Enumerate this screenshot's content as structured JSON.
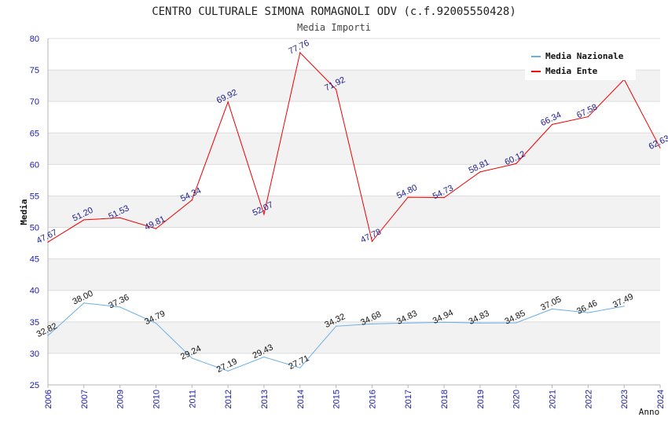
{
  "chart_data": {
    "type": "line",
    "title": "CENTRO CULTURALE SIMONA ROMAGNOLI ODV (c.f.92005550428)",
    "subtitle": "Media Importi",
    "xlabel": "Anno",
    "ylabel": "Media",
    "ylim": [
      25,
      80
    ],
    "yticks": [
      25,
      30,
      35,
      40,
      45,
      50,
      55,
      60,
      65,
      70,
      75,
      80
    ],
    "categories": [
      "2006",
      "2007",
      "2009",
      "2010",
      "2011",
      "2012",
      "2013",
      "2014",
      "2015",
      "2016",
      "2017",
      "2018",
      "2019",
      "2020",
      "2021",
      "2022",
      "2023",
      "2024"
    ],
    "grid": "horizontal bands",
    "legend_position": "top-right",
    "series": [
      {
        "name": "Media Nazionale",
        "color": "#6aaee6",
        "label_color": "#111111",
        "values": [
          32.82,
          38.0,
          37.36,
          34.79,
          29.24,
          27.19,
          29.43,
          27.71,
          34.32,
          34.68,
          34.83,
          34.94,
          34.83,
          34.85,
          37.05,
          36.46,
          37.49,
          null
        ],
        "labels": [
          "32.82",
          "38.00",
          "37.36",
          "34.79",
          "29.24",
          "27.19",
          "29.43",
          "27.71",
          "34.32",
          "34.68",
          "34.83",
          "34.94",
          "34.83",
          "34.85",
          "37.05",
          "36.46",
          "37.49",
          null
        ]
      },
      {
        "name": "Media Ente",
        "color": "#ee0000",
        "label_color": "#1a1a8c",
        "values": [
          47.67,
          51.2,
          51.53,
          49.81,
          54.34,
          69.92,
          52.07,
          77.76,
          71.92,
          47.78,
          54.8,
          54.73,
          58.81,
          60.12,
          66.34,
          67.58,
          73.5,
          62.63
        ],
        "labels": [
          "47.67",
          "51.20",
          "51.53",
          "49.81",
          "54.34",
          "69.92",
          "52.07",
          "77.76",
          "71.92",
          "47.78",
          "54.80",
          "54.73",
          "58.81",
          "60.12",
          "66.34",
          "67.58",
          null,
          "62.63"
        ]
      }
    ]
  }
}
